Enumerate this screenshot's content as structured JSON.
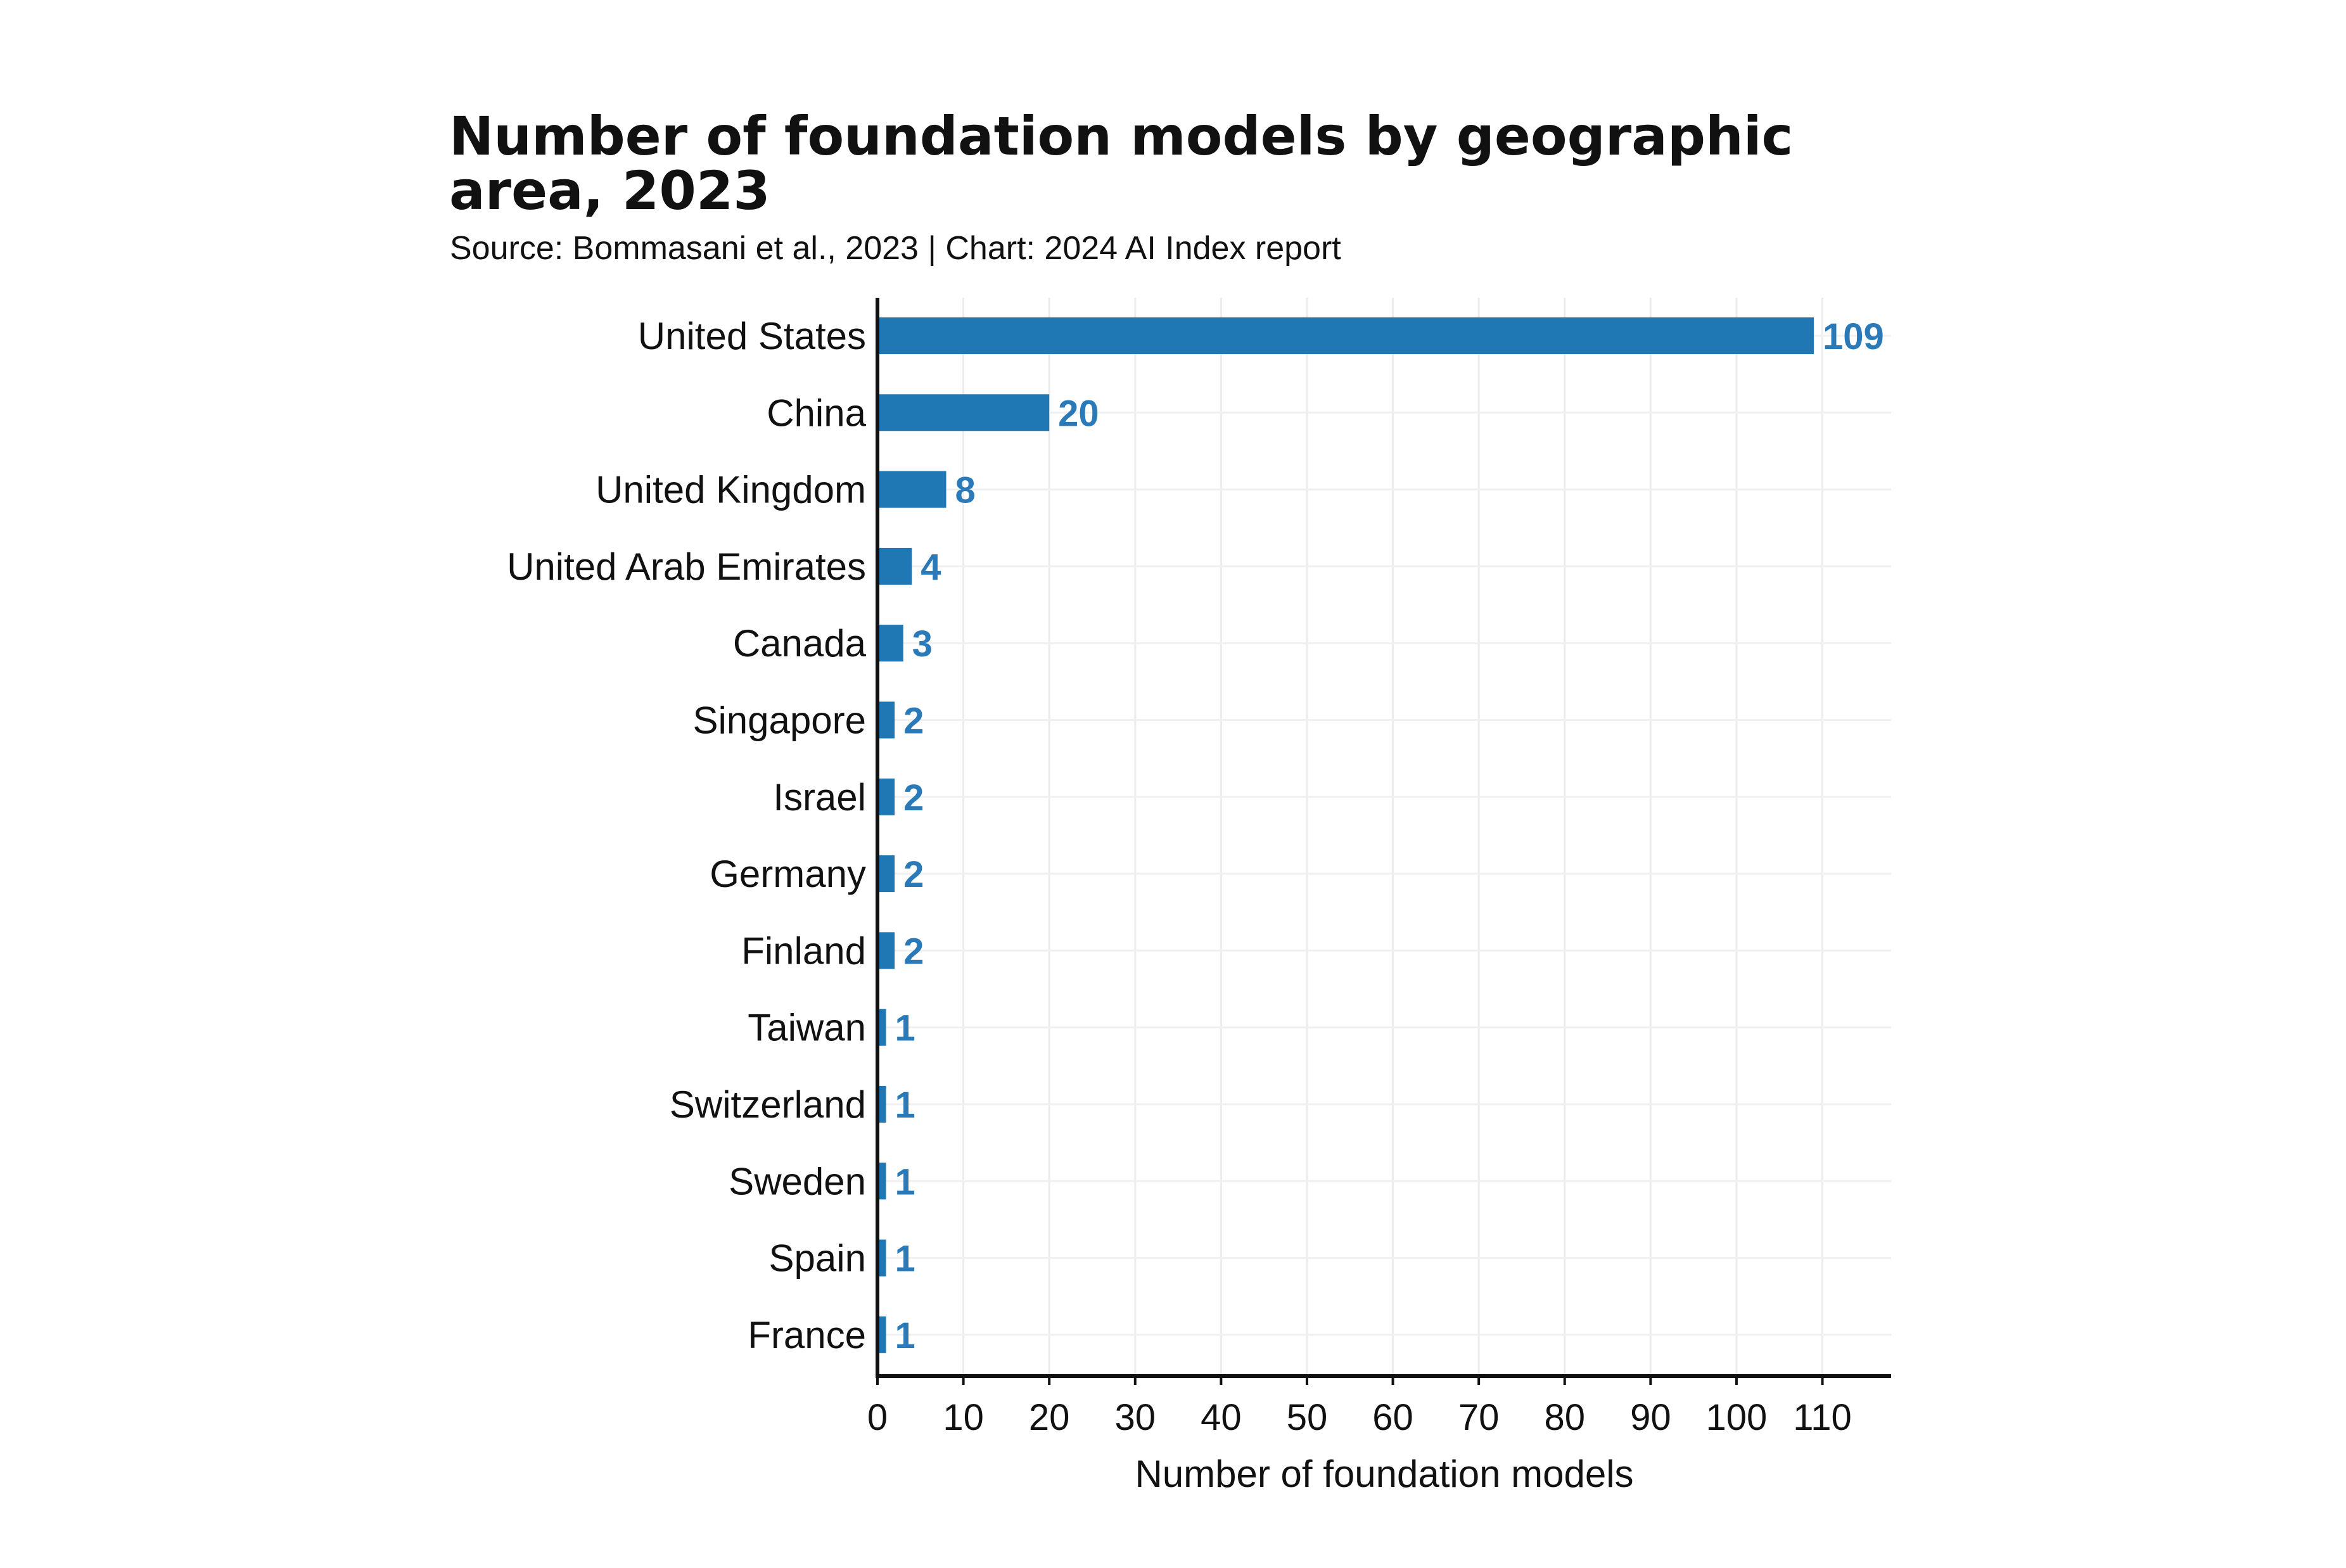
{
  "chart_data": {
    "type": "bar",
    "orientation": "horizontal",
    "title": "Number of foundation models by geographic area, 2023",
    "subtitle": "Source: Bommasani et al., 2023 | Chart: 2024 AI Index report",
    "xlabel": "Number of foundation models",
    "ylabel": "",
    "xlim": [
      0,
      118
    ],
    "xticks": [
      0,
      10,
      20,
      30,
      40,
      50,
      60,
      70,
      80,
      90,
      100,
      110
    ],
    "grid": true,
    "legend": "none",
    "bar_color": "#1f77b4",
    "label_color": "#2a7ab9",
    "categories": [
      "United States",
      "China",
      "United Kingdom",
      "United Arab Emirates",
      "Canada",
      "Singapore",
      "Israel",
      "Germany",
      "Finland",
      "Taiwan",
      "Switzerland",
      "Sweden",
      "Spain",
      "France"
    ],
    "values": [
      109,
      20,
      8,
      4,
      3,
      2,
      2,
      2,
      2,
      1,
      1,
      1,
      1,
      1
    ]
  }
}
